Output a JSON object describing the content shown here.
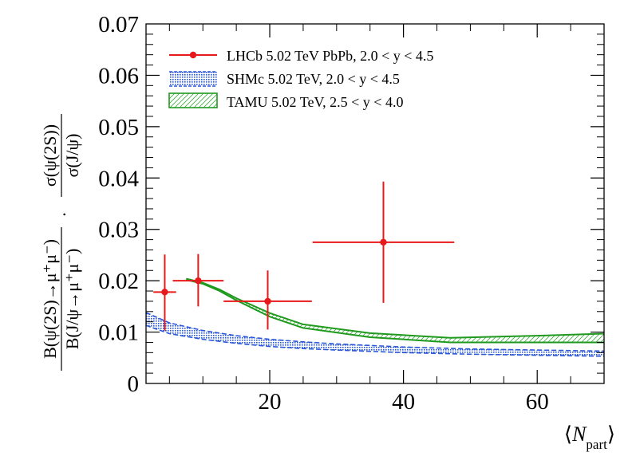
{
  "chart_data": {
    "type": "scatter",
    "xlabel": {
      "main": "N",
      "sub": "part"
    },
    "ylabel": {
      "br_num": "B(ψ(2S)→μ⁺μ⁻)",
      "br_den": "B(J/ψ→μ⁺μ⁻)",
      "xs_num": "σ(ψ(2S))",
      "xs_den": "σ(J/ψ)",
      "dot": "·"
    },
    "xlim": [
      1.5,
      70
    ],
    "ylim": [
      0,
      0.07
    ],
    "xticks": [
      20,
      40,
      60
    ],
    "xtick_labels": [
      "20",
      "40",
      "60"
    ],
    "yticks": [
      0,
      0.01,
      0.02,
      0.03,
      0.04,
      0.05,
      0.06,
      0.07
    ],
    "ytick_labels": [
      "0",
      "0.01",
      "0.02",
      "0.03",
      "0.04",
      "0.05",
      "0.06",
      "0.07"
    ],
    "legend_position": "top-left",
    "series": [
      {
        "name": "LHCb 5.02 TeV PbPb, 2.0 < y < 4.5",
        "kind": "points",
        "color": "#e8191b",
        "points": [
          {
            "x": 4.3,
            "xerr": [
              1.7,
              1.7
            ],
            "y": 0.0178,
            "yerr": [
              0.0075,
              0.0073
            ]
          },
          {
            "x": 9.3,
            "xerr": [
              3.8,
              3.8
            ],
            "y": 0.02,
            "yerr": [
              0.005,
              0.0052
            ]
          },
          {
            "x": 19.7,
            "xerr": [
              6.6,
              6.6
            ],
            "y": 0.016,
            "yerr": [
              0.0055,
              0.006
            ]
          },
          {
            "x": 37.0,
            "xerr": [
              10.6,
              10.6
            ],
            "y": 0.0275,
            "yerr": [
              0.0118,
              0.0118
            ]
          }
        ]
      },
      {
        "name": "SHMc 5.02 TeV, 2.0 < y < 4.5",
        "kind": "band",
        "color": "#2a57d9",
        "x": [
          1.5,
          5,
          10,
          15,
          20,
          25,
          30,
          40,
          50,
          60,
          70
        ],
        "upper": [
          0.0138,
          0.0118,
          0.0103,
          0.0093,
          0.0086,
          0.0081,
          0.0077,
          0.0071,
          0.0067,
          0.0065,
          0.0063
        ],
        "lower": [
          0.0113,
          0.0097,
          0.0086,
          0.0078,
          0.0072,
          0.0068,
          0.0065,
          0.006,
          0.0057,
          0.0055,
          0.0053
        ]
      },
      {
        "name": "TAMU 5.02 TeV, 2.5 < y < 4.0",
        "kind": "band",
        "color": "#1f9a1f",
        "x": [
          7.5,
          10,
          12.5,
          15,
          20,
          25,
          35,
          47,
          60,
          70
        ],
        "upper": [
          0.0204,
          0.0196,
          0.0183,
          0.0166,
          0.0137,
          0.0115,
          0.0098,
          0.0089,
          0.0093,
          0.0097
        ],
        "lower": [
          0.0202,
          0.0194,
          0.018,
          0.0162,
          0.013,
          0.0108,
          0.009,
          0.008,
          0.008,
          0.008
        ]
      }
    ]
  }
}
